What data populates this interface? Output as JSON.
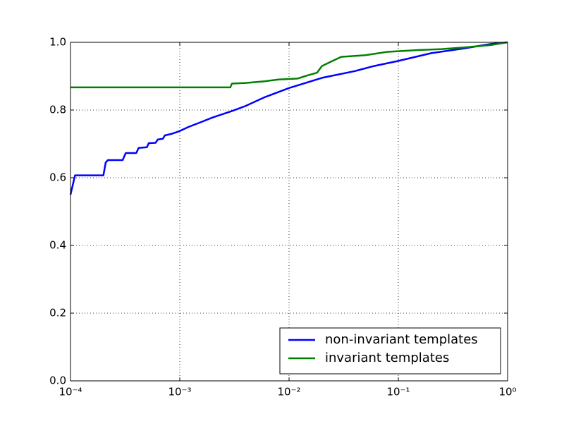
{
  "chart_data": {
    "type": "line",
    "xscale": "log",
    "grid": true,
    "legend": "lower right",
    "xlim": [
      0.0001,
      1
    ],
    "ylim": [
      0,
      1
    ],
    "xticks": [
      {
        "value": 0.0001,
        "label": "10⁻⁴"
      },
      {
        "value": 0.001,
        "label": "10⁻³"
      },
      {
        "value": 0.01,
        "label": "10⁻²"
      },
      {
        "value": 0.1,
        "label": "10⁻¹"
      },
      {
        "value": 1,
        "label": "10⁰"
      }
    ],
    "yticks": [
      {
        "value": 0,
        "label": "0.0"
      },
      {
        "value": 0.2,
        "label": "0.2"
      },
      {
        "value": 0.4,
        "label": "0.4"
      },
      {
        "value": 0.6,
        "label": "0.6"
      },
      {
        "value": 0.8,
        "label": "0.8"
      },
      {
        "value": 1,
        "label": "1.0"
      }
    ],
    "series": [
      {
        "name": "non-invariant templates",
        "color": "#0000ff",
        "x": [
          0.0001,
          0.00011,
          0.0002,
          0.00021,
          0.00022,
          0.0003,
          0.00032,
          0.0004,
          0.00042,
          0.0005,
          0.00052,
          0.0006,
          0.00063,
          0.0007,
          0.00073,
          0.00085,
          0.001,
          0.0012,
          0.0015,
          0.002,
          0.003,
          0.004,
          0.006,
          0.01,
          0.02,
          0.04,
          0.06,
          0.1,
          0.2,
          0.4,
          0.7,
          1
        ],
        "values": [
          0.55,
          0.607,
          0.607,
          0.645,
          0.652,
          0.652,
          0.673,
          0.673,
          0.688,
          0.69,
          0.702,
          0.703,
          0.713,
          0.715,
          0.725,
          0.73,
          0.738,
          0.75,
          0.762,
          0.778,
          0.797,
          0.812,
          0.838,
          0.865,
          0.895,
          0.915,
          0.93,
          0.945,
          0.968,
          0.982,
          0.995,
          1.0
        ]
      },
      {
        "name": "invariant templates",
        "color": "#008000",
        "x": [
          0.0001,
          0.0029,
          0.003,
          0.004,
          0.006,
          0.008,
          0.012,
          0.015,
          0.018,
          0.02,
          0.025,
          0.03,
          0.05,
          0.08,
          0.15,
          0.25,
          0.4,
          0.7,
          1
        ],
        "values": [
          0.867,
          0.867,
          0.878,
          0.88,
          0.885,
          0.89,
          0.893,
          0.903,
          0.91,
          0.93,
          0.945,
          0.957,
          0.962,
          0.972,
          0.977,
          0.98,
          0.985,
          0.992,
          1.0
        ]
      }
    ]
  }
}
